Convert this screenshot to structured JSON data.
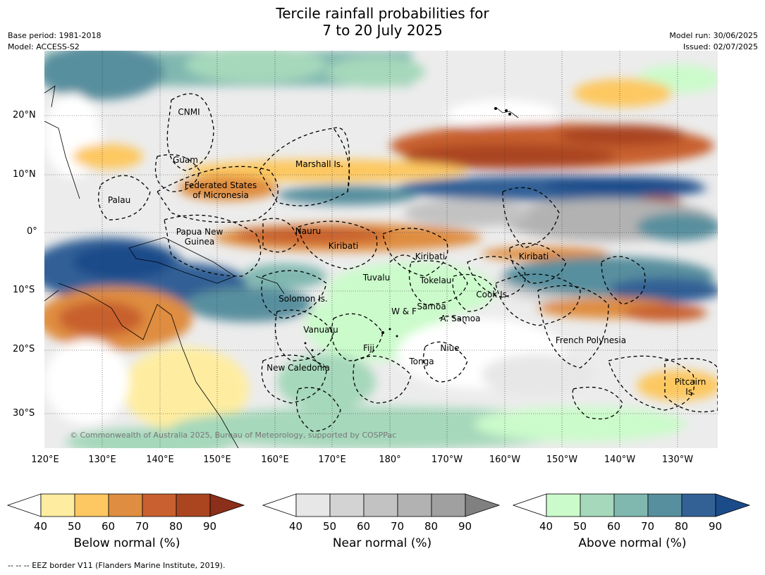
{
  "title": {
    "line1": "Tercile rainfall probabilities for",
    "line2": "7 to 20 July 2025"
  },
  "meta": {
    "base_period": "Base period: 1981-2018",
    "model": "Model: ACCESS-S2",
    "model_run": "Model run: 30/06/2025",
    "issued": "Issued: 02/07/2025"
  },
  "map": {
    "lat_labels": [
      "20°N",
      "10°N",
      "0°",
      "10°S",
      "20°S",
      "30°S"
    ],
    "lon_labels": [
      "120°E",
      "130°E",
      "140°E",
      "150°E",
      "160°E",
      "170°E",
      "180°",
      "170°W",
      "160°W",
      "150°W",
      "140°W",
      "130°W"
    ],
    "places": {
      "cnmi": "CNMI",
      "guam": "Guam",
      "marshall": "Marshall Is.",
      "fsm_1": "Federated States",
      "fsm_2": "of Micronesia",
      "palau": "Palau",
      "png_1": "Papua New",
      "png_2": "Guinea",
      "nauru": "Nauru",
      "kiribati_w": "Kiribati",
      "kiribati_c": "Kiribati",
      "kiribati_e": "Kiribati",
      "tuvalu": "Tuvalu",
      "tokelau": "Tokelau",
      "cook": "Cook Is.",
      "solomon": "Solomon Is.",
      "samoa": "Samoa",
      "wf": "W & F",
      "asamoa": "A. Samoa",
      "vanuatu": "Vanuatu",
      "fiji": "Fiji",
      "niue": "Niue",
      "french_polynesia": "French Polynesia",
      "tonga": "Tonga",
      "new_caledonia": "New Caledonia",
      "pitcairn_1": "Pitcairn",
      "pitcairn_2": "Is."
    },
    "copyright": "© Commonwealth of Australia 2025, Bureau of Meteorology, supported by COSPPac"
  },
  "colorbars": [
    {
      "title": "Below normal (%)",
      "ticks": [
        "40",
        "50",
        "60",
        "70",
        "80",
        "90"
      ],
      "colors": [
        "#ffffff",
        "#feeda0",
        "#fdc861",
        "#df8d40",
        "#c8612f",
        "#aa4520",
        "#8b2e1a"
      ]
    },
    {
      "title": "Near normal (%)",
      "ticks": [
        "40",
        "50",
        "60",
        "70",
        "80",
        "90"
      ],
      "colors": [
        "#ffffff",
        "#e7e7e7",
        "#d3d3d3",
        "#c2c2c2",
        "#b2b2b2",
        "#a0a0a0",
        "#808080"
      ]
    },
    {
      "title": "Above normal (%)",
      "ticks": [
        "40",
        "50",
        "60",
        "70",
        "80",
        "90"
      ],
      "colors": [
        "#ffffff",
        "#cbfbcb",
        "#a6d8bb",
        "#80b8b0",
        "#588f9e",
        "#336196",
        "#1c4b8a"
      ]
    }
  ],
  "footer": "--  --  -- EEZ border V11 (Flanders Marine Institute, 2019)."
}
